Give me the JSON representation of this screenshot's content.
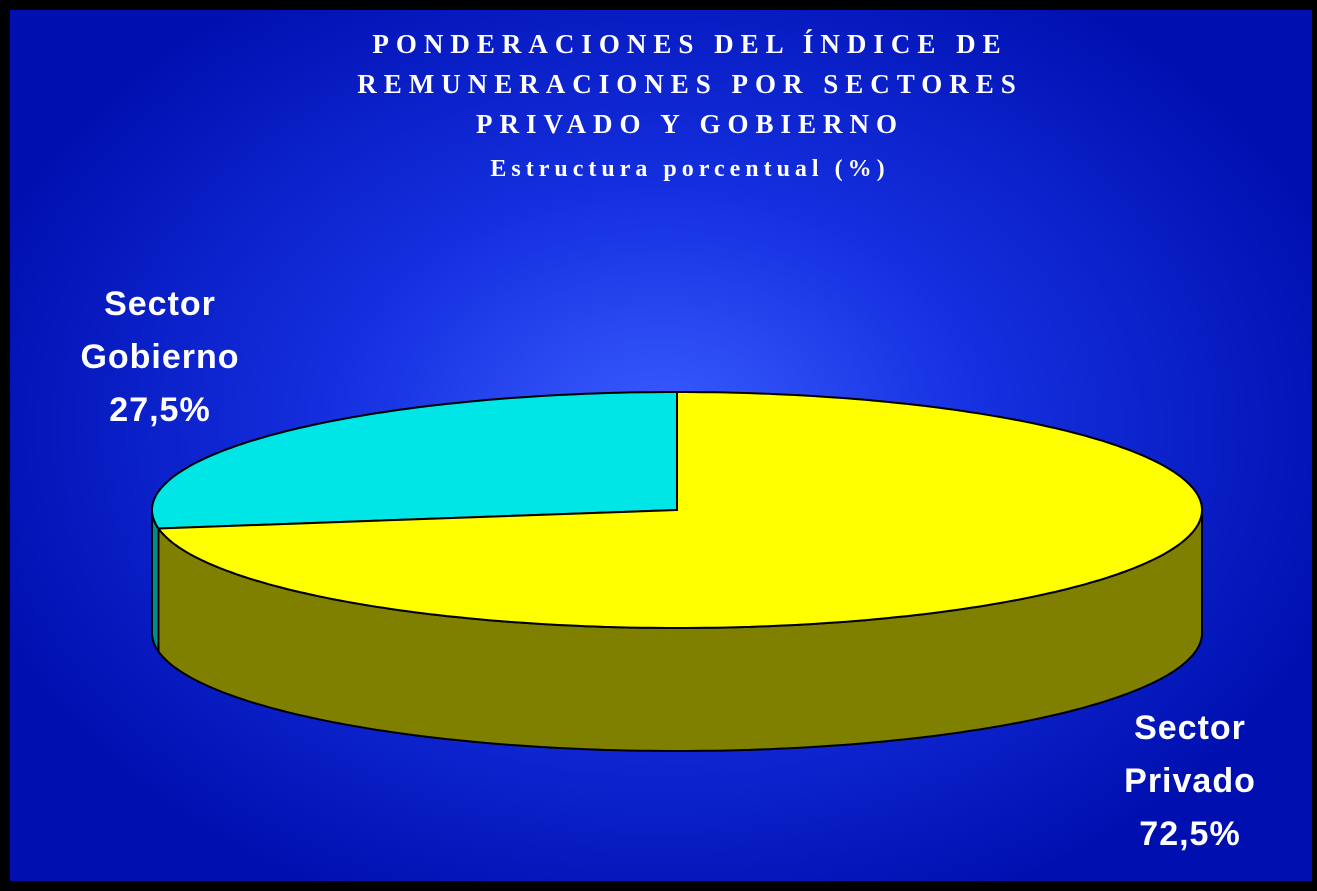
{
  "chart_data": {
    "type": "pie3d",
    "title": "PONDERACIONES DEL ÍNDICE DE REMUNERACIONES POR SECTORES PRIVADO Y GOBIERNO",
    "subtitle": "Estructura porcentual (%)",
    "categories": [
      "Sector Gobierno",
      "Sector Privado"
    ],
    "values": [
      27.5,
      72.5
    ],
    "value_labels": [
      "27,5%",
      "72,5%"
    ],
    "colors": [
      "#00e6e6",
      "#ffff00"
    ],
    "side_colors": [
      "#008c8c",
      "#808000"
    ]
  }
}
